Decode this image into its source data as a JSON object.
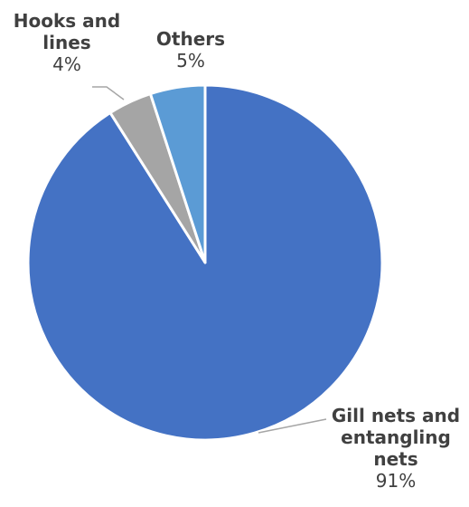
{
  "chart_data": {
    "type": "pie",
    "title": "",
    "categories": [
      "Gill nets and entangling nets",
      "Hooks and lines",
      "Others"
    ],
    "values": [
      91,
      4,
      5
    ],
    "labels": [
      {
        "name_lines": [
          "Gill  nets and",
          "entangling",
          "nets"
        ],
        "pct": "91%"
      },
      {
        "name_lines": [
          "Hooks and",
          "lines"
        ],
        "pct": "4%"
      },
      {
        "name_lines": [
          "Others"
        ],
        "pct": "5%"
      }
    ],
    "colors": [
      "#4472C4",
      "#A5A5A5",
      "#5B9BD5"
    ],
    "start_angle_deg": 0,
    "direction": "clockwise",
    "legend": "none",
    "leader_lines": true
  }
}
